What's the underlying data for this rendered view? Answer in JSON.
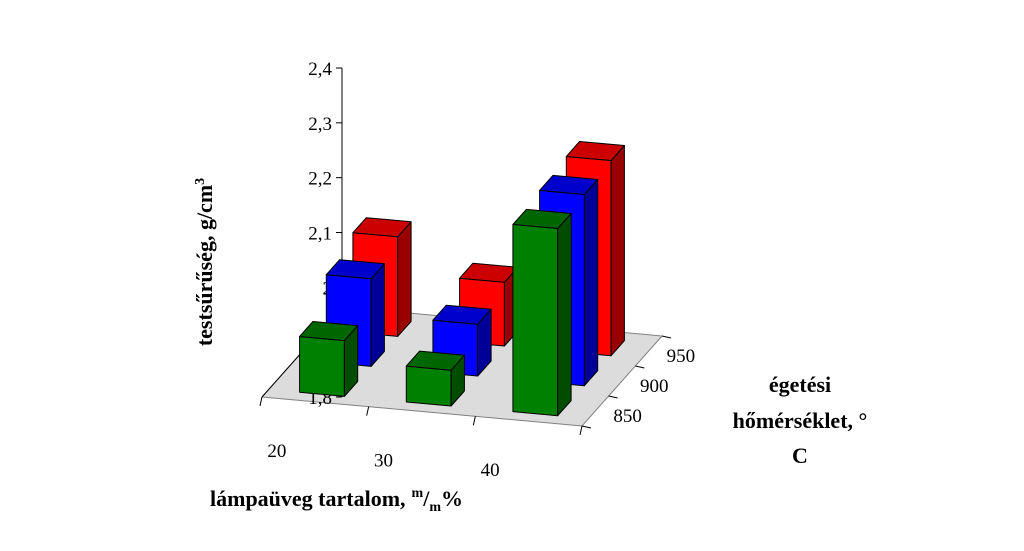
{
  "chart_data": {
    "type": "bar",
    "variant": "3d-column",
    "categories": [
      "20",
      "30",
      "40"
    ],
    "depth_categories": [
      "850",
      "900",
      "950"
    ],
    "series": [
      {
        "depth": "850",
        "color": "#008000",
        "values": [
          1.94,
          1.89,
          2.27
        ]
      },
      {
        "depth": "900",
        "color": "#0000ff",
        "values": [
          2.02,
          1.93,
          2.28
        ]
      },
      {
        "depth": "950",
        "color": "#ff0000",
        "values": [
          2.05,
          1.96,
          2.29
        ]
      }
    ],
    "ylim": [
      1.8,
      2.4
    ],
    "yticks": [
      "1,8",
      "1,9",
      "2",
      "2,1",
      "2,2",
      "2,3",
      "2,4"
    ],
    "ytick_values": [
      1.8,
      1.9,
      2.0,
      2.1,
      2.2,
      2.3,
      2.4
    ],
    "ylabel": "testsűrűség, g/cm",
    "ylabel_sup": "3",
    "xlabel_main": "lámpaüveg tartalom,",
    "xlabel_num": "m",
    "xlabel_den": "m",
    "xlabel_suffix": "%",
    "zlabel_line1": "égetési",
    "zlabel_line2": "hőmérséklet, °",
    "zlabel_line3": "C",
    "floor_color": "#dcdcdc",
    "grid": false,
    "legend": "none"
  }
}
